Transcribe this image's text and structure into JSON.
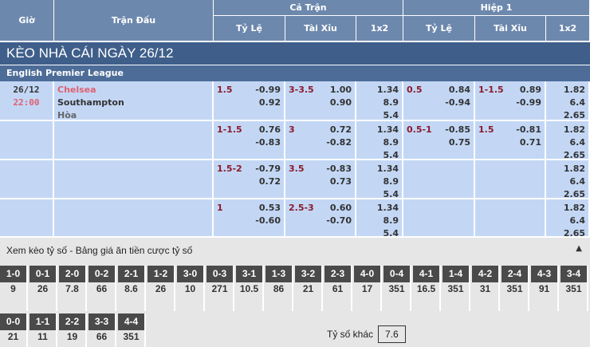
{
  "header": {
    "time": "Giờ",
    "match": "Trận Đấu",
    "full": "Cả Trận",
    "half": "Hiệp 1",
    "hdp": "Tỷ Lệ",
    "ou": "Tài Xỉu",
    "x12": "1x2"
  },
  "title": "KÈO NHÀ CÁI NGÀY 26/12",
  "league": "English Premier League",
  "match": {
    "date": "26/12",
    "time": "22:00",
    "home": "Chelsea",
    "away": "Southampton",
    "draw": "Hòa"
  },
  "rows": [
    {
      "hdp": [
        "1.5",
        "-0.99",
        "0.92"
      ],
      "ou": [
        "3-3.5",
        "1.00",
        "0.90"
      ],
      "x12": [
        "1.34",
        "8.9",
        "5.4"
      ],
      "h_hdp": [
        "0.5",
        "0.84",
        "-0.94"
      ],
      "h_ou": [
        "1-1.5",
        "0.89",
        "-0.99"
      ],
      "h_x12": [
        "1.82",
        "6.4",
        "2.65"
      ]
    },
    {
      "hdp": [
        "1-1.5",
        "0.76",
        "-0.83"
      ],
      "ou": [
        "3",
        "0.72",
        "-0.82"
      ],
      "x12": [
        "1.34",
        "8.9",
        "5.4"
      ],
      "h_hdp": [
        "0.5-1",
        "-0.85",
        "0.75"
      ],
      "h_ou": [
        "1.5",
        "-0.81",
        "0.71"
      ],
      "h_x12": [
        "1.82",
        "6.4",
        "2.65"
      ]
    },
    {
      "hdp": [
        "1.5-2",
        "-0.79",
        "0.72"
      ],
      "ou": [
        "3.5",
        "-0.83",
        "0.73"
      ],
      "x12": [
        "1.34",
        "8.9",
        "5.4"
      ],
      "h_hdp": [
        "",
        "",
        ""
      ],
      "h_ou": [
        "",
        "",
        ""
      ],
      "h_x12": [
        "1.82",
        "6.4",
        "2.65"
      ]
    },
    {
      "hdp": [
        "1",
        "0.53",
        "-0.60"
      ],
      "ou": [
        "2.5-3",
        "0.60",
        "-0.70"
      ],
      "x12": [
        "1.34",
        "8.9",
        "5.4"
      ],
      "h_hdp": [
        "",
        "",
        ""
      ],
      "h_ou": [
        "",
        "",
        ""
      ],
      "h_x12": [
        "1.82",
        "6.4",
        "2.65"
      ]
    }
  ],
  "scores": {
    "title": "Xem kèo tỷ số - Bảng giá ăn tiền cược tỷ số",
    "collapse_icon": "triangle-up-icon",
    "row1": [
      [
        "1-0",
        "9"
      ],
      [
        "0-1",
        "26"
      ],
      [
        "2-0",
        "7.8"
      ],
      [
        "0-2",
        "66"
      ],
      [
        "2-1",
        "8.6"
      ],
      [
        "1-2",
        "26"
      ],
      [
        "3-0",
        "10"
      ],
      [
        "0-3",
        "271"
      ],
      [
        "3-1",
        "10.5"
      ],
      [
        "1-3",
        "86"
      ],
      [
        "3-2",
        "21"
      ],
      [
        "2-3",
        "61"
      ],
      [
        "4-0",
        "17"
      ],
      [
        "0-4",
        "351"
      ],
      [
        "4-1",
        "16.5"
      ],
      [
        "1-4",
        "351"
      ],
      [
        "4-2",
        "31"
      ],
      [
        "2-4",
        "351"
      ],
      [
        "4-3",
        "91"
      ],
      [
        "3-4",
        "351"
      ]
    ],
    "row2": [
      [
        "0-0",
        "21"
      ],
      [
        "1-1",
        "11"
      ],
      [
        "2-2",
        "19"
      ],
      [
        "3-3",
        "66"
      ],
      [
        "4-4",
        "351"
      ]
    ],
    "other_label": "Tỷ số khác",
    "other_value": "7.6"
  }
}
